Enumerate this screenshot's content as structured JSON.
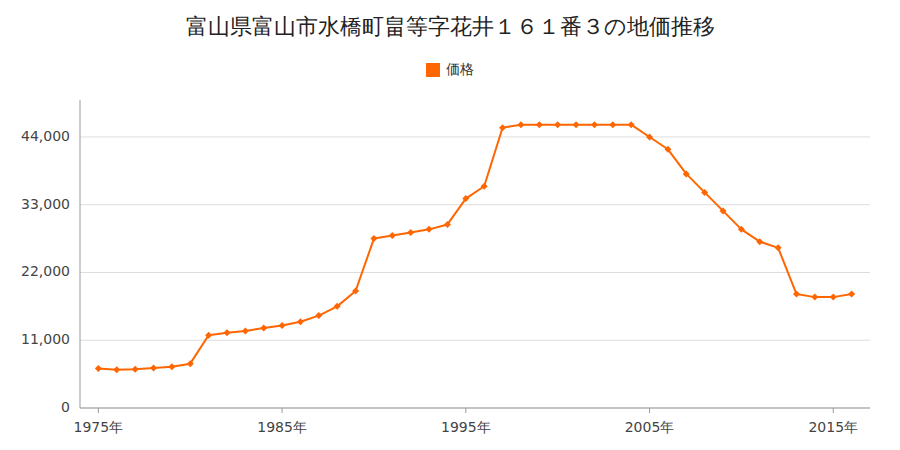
{
  "chart_data": {
    "type": "line",
    "title": "富山県富山市水橋町畠等字花井１６１番３の地価推移",
    "x": [
      1975,
      1976,
      1977,
      1978,
      1979,
      1980,
      1981,
      1982,
      1983,
      1984,
      1985,
      1986,
      1987,
      1988,
      1989,
      1990,
      1991,
      1992,
      1993,
      1994,
      1995,
      1996,
      1997,
      1998,
      1999,
      2000,
      2001,
      2002,
      2003,
      2004,
      2005,
      2006,
      2007,
      2008,
      2009,
      2010,
      2011,
      2012,
      2013,
      2014,
      2015,
      2016
    ],
    "series": [
      {
        "name": "価格",
        "color": "#FF6600",
        "marker": "diamond",
        "values": [
          6400,
          6200,
          6300,
          6500,
          6700,
          7200,
          11800,
          12200,
          12500,
          13000,
          13400,
          14000,
          15000,
          16500,
          19000,
          27500,
          28000,
          28500,
          29000,
          29800,
          34000,
          36000,
          45500,
          46000,
          46000,
          46000,
          46000,
          46000,
          46000,
          46000,
          44000,
          42000,
          38000,
          35000,
          32000,
          29000,
          27000,
          26000,
          18500,
          18000,
          18000,
          18500
        ]
      }
    ],
    "xlim": [
      1974,
      2017
    ],
    "xticks": [
      {
        "value": 1975,
        "label": "1975年"
      },
      {
        "value": 1985,
        "label": "1985年"
      },
      {
        "value": 1995,
        "label": "1995年"
      },
      {
        "value": 2005,
        "label": "2005年"
      },
      {
        "value": 2015,
        "label": "2015年"
      }
    ],
    "ylim": [
      0,
      50000
    ],
    "yticks": [
      0,
      {
        "value": 11000,
        "label": "11,000"
      },
      {
        "value": 22000,
        "label": "22,000"
      },
      {
        "value": 33000,
        "label": "33,000"
      },
      {
        "value": 44000,
        "label": "44,000"
      }
    ],
    "grid": true,
    "legend": "top"
  }
}
